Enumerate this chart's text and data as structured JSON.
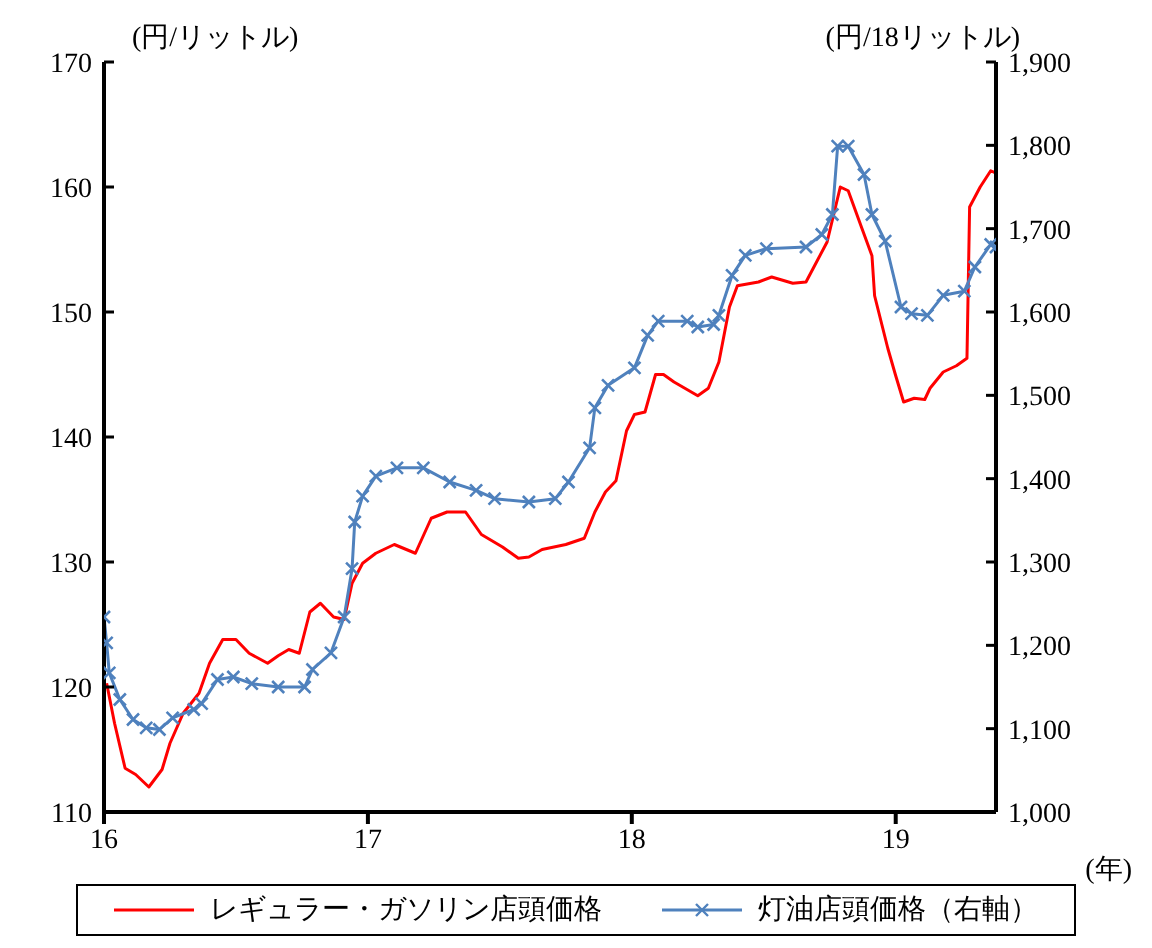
{
  "chart_data": {
    "type": "line",
    "ylabel": "(円/リットル)",
    "y2label": "(円/18リットル)",
    "xlabel": "(年)",
    "xlim": [
      16,
      19.38
    ],
    "xticks": [
      16,
      17,
      18,
      19
    ],
    "ylim": [
      110,
      170
    ],
    "yticks": [
      110,
      120,
      130,
      140,
      150,
      160,
      170
    ],
    "y2lim": [
      1000,
      1900
    ],
    "y2ticks": [
      {
        "value": 1000,
        "label": "1,000"
      },
      {
        "value": 1100,
        "label": "1,100"
      },
      {
        "value": 1200,
        "label": "1,200"
      },
      {
        "value": 1300,
        "label": "1,300"
      },
      {
        "value": 1400,
        "label": "1,400"
      },
      {
        "value": 1500,
        "label": "1,500"
      },
      {
        "value": 1600,
        "label": "1,600"
      },
      {
        "value": 1700,
        "label": "1,700"
      },
      {
        "value": 1800,
        "label": "1,800"
      },
      {
        "value": 1900,
        "label": "1,900"
      }
    ],
    "legend": "bottom",
    "series": [
      {
        "name": "レギュラー・ガソリン店頭価格",
        "color": "#ff0000",
        "x": [
          16.01,
          16.04,
          16.08,
          16.12,
          16.17,
          16.22,
          16.25,
          16.3,
          16.36,
          16.4,
          16.45,
          16.5,
          16.55,
          16.62,
          16.66,
          16.7,
          16.74,
          16.78,
          16.82,
          16.87,
          16.91,
          16.94,
          16.98,
          17.03,
          17.1,
          17.18,
          17.24,
          17.3,
          17.37,
          17.43,
          17.51,
          17.57,
          17.61,
          17.66,
          17.75,
          17.82,
          17.86,
          17.9,
          17.94,
          17.98,
          18.01,
          18.05,
          18.09,
          18.12,
          18.16,
          18.25,
          18.29,
          18.33,
          18.37,
          18.4,
          18.48,
          18.53,
          18.61,
          18.66,
          18.68,
          18.74,
          18.79,
          18.82,
          18.87,
          18.91,
          18.92,
          18.97,
          19.0,
          19.03,
          19.07,
          19.11,
          19.13,
          19.18,
          19.23,
          19.27,
          19.28,
          19.32,
          19.36,
          19.38
        ],
        "values": [
          120.3,
          117.1,
          113.5,
          113,
          112,
          113.4,
          115.5,
          117.9,
          119.5,
          121.9,
          123.8,
          123.8,
          122.7,
          121.9,
          122.5,
          123,
          122.7,
          126,
          126.7,
          125.6,
          125.4,
          128.3,
          129.9,
          130.7,
          131.4,
          130.7,
          133.5,
          134,
          134,
          132.2,
          131.2,
          130.3,
          130.4,
          131,
          131.4,
          131.9,
          134,
          135.6,
          136.5,
          140.5,
          141.8,
          142,
          145,
          145,
          144.4,
          143.3,
          143.9,
          146,
          150.4,
          152.1,
          152.4,
          152.8,
          152.3,
          152.4,
          153.2,
          155.6,
          160,
          159.7,
          156.8,
          154.5,
          151.3,
          147.1,
          144.9,
          142.8,
          143.1,
          143,
          143.9,
          145.2,
          145.7,
          146.3,
          158.4,
          160,
          161.3,
          161.1
        ]
      },
      {
        "name": "灯油店頭価格（右軸）",
        "color": "#4f81bd",
        "axis": "y2",
        "marker": "cross",
        "x": [
          16.0,
          16.01,
          16.02,
          16.06,
          16.11,
          16.16,
          16.21,
          16.26,
          16.34,
          16.37,
          16.43,
          16.49,
          16.56,
          16.66,
          16.76,
          16.79,
          16.86,
          16.91,
          16.94,
          16.95,
          16.98,
          17.03,
          17.11,
          17.21,
          17.31,
          17.41,
          17.48,
          17.61,
          17.71,
          17.76,
          17.84,
          17.86,
          17.91,
          18.01,
          18.06,
          18.1,
          18.21,
          18.25,
          18.31,
          18.33,
          18.38,
          18.43,
          18.51,
          18.66,
          18.72,
          18.76,
          18.78,
          18.82,
          18.88,
          18.91,
          18.96,
          19.02,
          19.06,
          19.12,
          19.18,
          19.26,
          19.3,
          19.36,
          19.38
        ],
        "values": [
          1234,
          1203,
          1167,
          1135,
          1111,
          1101,
          1099,
          1113,
          1123,
          1130,
          1159,
          1162,
          1154,
          1150,
          1150,
          1171,
          1191,
          1234,
          1292,
          1348,
          1379,
          1403,
          1413,
          1413,
          1396,
          1386,
          1376,
          1372,
          1376,
          1396,
          1437,
          1485,
          1512,
          1533,
          1572,
          1589,
          1589,
          1582,
          1585,
          1596,
          1644,
          1668,
          1676,
          1678,
          1693,
          1717,
          1799,
          1799,
          1765,
          1717,
          1685,
          1606,
          1598,
          1596,
          1620,
          1625,
          1654,
          1681,
          1678
        ]
      }
    ]
  }
}
